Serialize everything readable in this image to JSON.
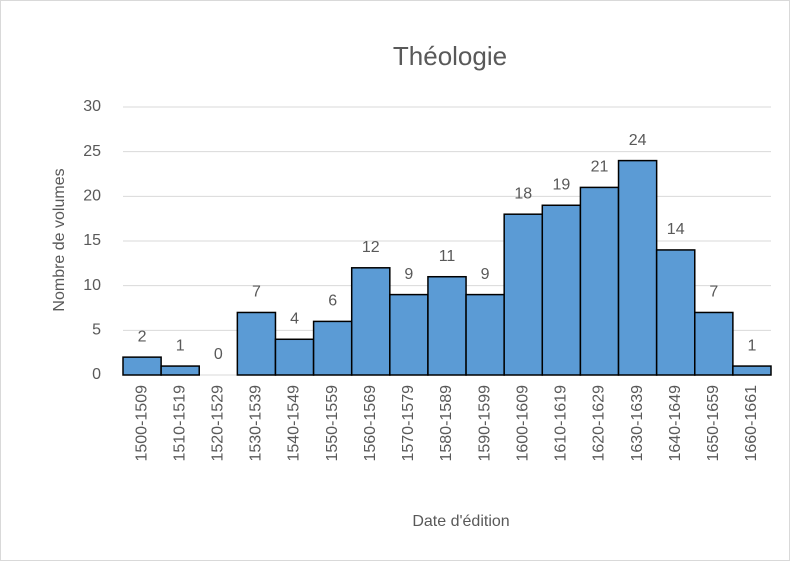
{
  "chart_data": {
    "type": "bar",
    "title": "Théologie",
    "x_label": "Date d'édition",
    "y_label": "Nombre de volumes",
    "categories": [
      "1500-1509",
      "1510-1519",
      "1520-1529",
      "1530-1539",
      "1540-1549",
      "1550-1559",
      "1560-1569",
      "1570-1579",
      "1580-1589",
      "1590-1599",
      "1600-1609",
      "1610-1619",
      "1620-1629",
      "1630-1639",
      "1640-1649",
      "1650-1659",
      "1660-1661"
    ],
    "values": [
      2,
      1,
      0,
      7,
      4,
      6,
      12,
      9,
      11,
      9,
      18,
      19,
      21,
      24,
      14,
      7,
      1
    ],
    "color": "#5b9bd5",
    "ylim": [
      0,
      30
    ],
    "yticks": [
      0,
      5,
      10,
      15,
      20,
      25,
      30
    ],
    "grid": true
  }
}
